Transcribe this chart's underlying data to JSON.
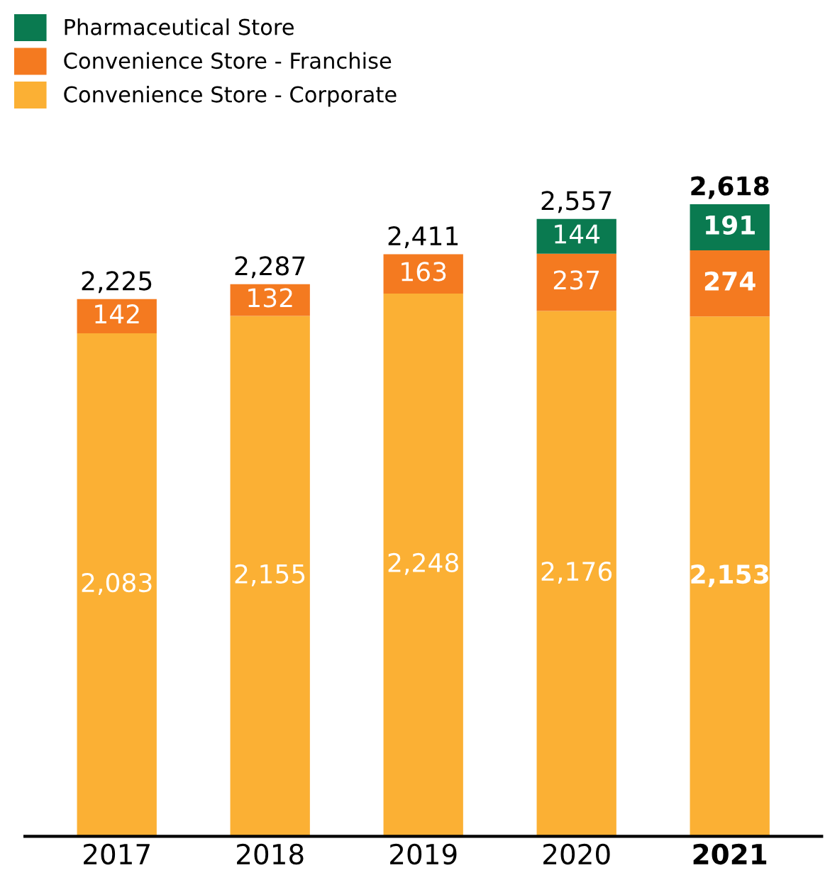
{
  "chart_data": {
    "type": "bar",
    "stacked": true,
    "categories": [
      "2017",
      "2018",
      "2019",
      "2020",
      "2021"
    ],
    "series": [
      {
        "name": "Convenience Store - Corporate",
        "color": "#fbb034",
        "values": [
          2083,
          2155,
          2248,
          2176,
          2153
        ],
        "value_labels": [
          "2,083",
          "2,155",
          "2,248",
          "2,176",
          "2,153"
        ]
      },
      {
        "name": "Convenience Store - Franchise",
        "color": "#f47a20",
        "values": [
          142,
          132,
          163,
          237,
          274
        ],
        "value_labels": [
          "142",
          "132",
          "163",
          "237",
          "274"
        ]
      },
      {
        "name": "Pharmaceutical Store",
        "color": "#0a7a50",
        "values": [
          null,
          null,
          null,
          144,
          191
        ],
        "value_labels": [
          null,
          null,
          null,
          "144",
          "191"
        ]
      }
    ],
    "totals": [
      "2,225",
      "2,287",
      "2,411",
      "2,557",
      "2,618"
    ],
    "legend": "top left",
    "tick_labels": "x"
  }
}
